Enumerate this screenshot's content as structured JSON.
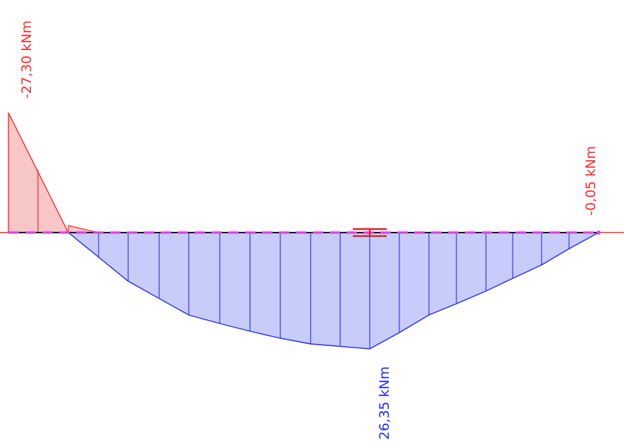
{
  "diagram": {
    "type": "bending-moment-diagram",
    "labels": {
      "max_negative": "-27,30 kNm",
      "end_value": "-0,05 kNm",
      "max_positive": "26,35 kNm"
    },
    "colors": {
      "negative_stroke": "#ff2a2a",
      "negative_fill": "#f7c6c6",
      "positive_stroke": "#1f2cff",
      "positive_fill": "#c8ccfa",
      "beam_axis": "#000000",
      "beam_dash": "#e040e0",
      "section_marker": "#e02020"
    }
  }
}
